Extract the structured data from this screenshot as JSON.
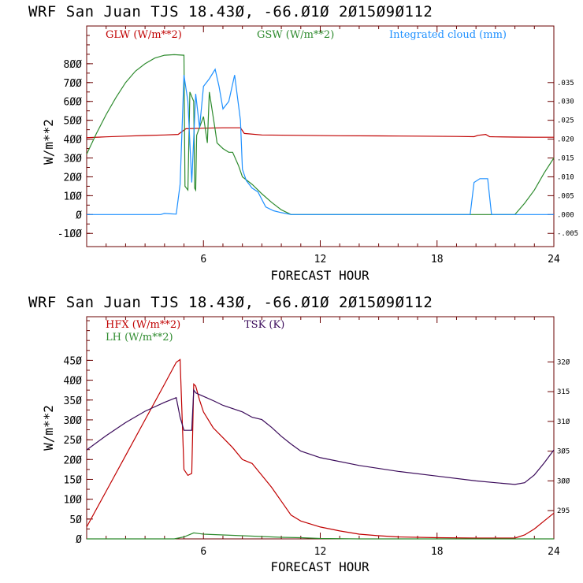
{
  "colors": {
    "red": "#c00000",
    "green": "#2e8b2e",
    "blue": "#1e90ff",
    "purple": "#3a0a5a",
    "frame": "#6a0000"
  },
  "chart_data": [
    {
      "type": "line",
      "title": "WRF  San Juan TJS  18.43Ø, -66.Ø1Ø  2Ø15Ø9Ø112",
      "xlabel": "FORECAST HOUR",
      "ylabel": "W/m**2",
      "xlim": [
        0,
        24
      ],
      "ylim": [
        -170,
        1000
      ],
      "x_ticks": [
        6,
        12,
        18,
        24
      ],
      "y_ticks": [
        -100,
        0,
        100,
        200,
        300,
        400,
        500,
        600,
        700,
        800
      ],
      "y_tick_labels": [
        "-1ØØ",
        "Ø",
        "1ØØ",
        "2ØØ",
        "3ØØ",
        "4ØØ",
        "5ØØ",
        "6ØØ",
        "7ØØ",
        "8ØØ"
      ],
      "x_tick_labels": [
        "6",
        "12",
        "18",
        "24"
      ],
      "y2lim": [
        -0.0085,
        0.05
      ],
      "y2_ticks": [
        -0.005,
        0.0,
        0.005,
        0.01,
        0.015,
        0.02,
        0.025,
        0.03,
        0.035
      ],
      "y2_tick_labels": [
        "-.005",
        ".000",
        ".005",
        ".010",
        ".015",
        ".020",
        ".025",
        ".030",
        ".035"
      ],
      "series": [
        {
          "name": "GLW (W/m**2)",
          "color_key": "red",
          "axis": "left",
          "x": [
            0,
            1,
            2,
            3,
            4,
            4.7,
            5.1,
            6,
            7,
            7.9,
            8.1,
            9,
            11,
            13,
            15,
            17,
            19,
            19.9,
            20.1,
            20.5,
            20.7,
            21,
            22,
            23,
            24
          ],
          "y": [
            408,
            412,
            416,
            419,
            422,
            425,
            455,
            458,
            460,
            460,
            430,
            422,
            420,
            418,
            417,
            416,
            414,
            413,
            420,
            425,
            413,
            412,
            411,
            410,
            410
          ]
        },
        {
          "name": "GSW (W/m**2)",
          "color_key": "green",
          "axis": "left",
          "x": [
            0,
            0.5,
            1,
            1.5,
            2,
            2.5,
            3,
            3.5,
            4,
            4.5,
            5.0,
            5.05,
            5.2,
            5.3,
            5.5,
            5.55,
            5.6,
            5.65,
            6.0,
            6.2,
            6.3,
            6.6,
            6.7,
            7.0,
            7.3,
            7.5,
            7.8,
            8.0,
            8.5,
            9.0,
            9.5,
            10.0,
            10.5,
            22.0,
            22.5,
            23,
            23.5,
            24
          ],
          "y": [
            320,
            430,
            530,
            620,
            700,
            760,
            800,
            830,
            845,
            848,
            845,
            150,
            130,
            650,
            600,
            140,
            130,
            420,
            520,
            380,
            650,
            450,
            380,
            350,
            330,
            330,
            260,
            200,
            160,
            110,
            65,
            25,
            0,
            0,
            60,
            130,
            220,
            300
          ]
        },
        {
          "name": "Integrated cloud (mm)",
          "color_key": "blue",
          "axis": "right",
          "x": [
            0,
            3.8,
            4.0,
            4.3,
            4.6,
            4.8,
            5.0,
            5.2,
            5.4,
            5.6,
            5.8,
            6.0,
            6.3,
            6.6,
            6.8,
            7.0,
            7.3,
            7.6,
            7.9,
            8.0,
            8.2,
            8.5,
            8.8,
            9.2,
            9.6,
            10.0,
            10.5,
            19.7,
            19.9,
            20.2,
            20.6,
            20.8,
            24
          ],
          "y": [
            0,
            0,
            0.0003,
            0.0002,
            0.0001,
            0.008,
            0.037,
            0.03,
            0.0085,
            0.032,
            0.023,
            0.034,
            0.036,
            0.0385,
            0.034,
            0.028,
            0.03,
            0.037,
            0.025,
            0.012,
            0.009,
            0.007,
            0.006,
            0.002,
            0.001,
            0.0005,
            0,
            0,
            0.0085,
            0.0095,
            0.0095,
            0,
            0
          ]
        }
      ]
    },
    {
      "type": "line",
      "title": "WRF  San Juan TJS  18.43Ø, -66.Ø1Ø  2Ø15Ø9Ø112",
      "xlabel": "FORECAST HOUR",
      "ylabel": "W/m**2",
      "xlim": [
        0,
        24
      ],
      "ylim": [
        0,
        560
      ],
      "x_ticks": [
        6,
        12,
        18,
        24
      ],
      "y_ticks": [
        0,
        50,
        100,
        150,
        200,
        250,
        300,
        350,
        400,
        450
      ],
      "y_tick_labels": [
        "Ø",
        "5Ø",
        "1ØØ",
        "15Ø",
        "2ØØ",
        "25Ø",
        "3ØØ",
        "35Ø",
        "4ØØ",
        "45Ø"
      ],
      "x_tick_labels": [
        "6",
        "12",
        "18",
        "24"
      ],
      "y2lim": [
        290.25,
        327.6
      ],
      "y2_ticks": [
        295,
        300,
        305,
        310,
        315,
        320
      ],
      "y2_tick_labels": [
        "295",
        "3ØØ",
        "3Ø5",
        "31Ø",
        "315",
        "32Ø"
      ],
      "series": [
        {
          "name": "HFX (W/m**2)",
          "color_key": "red",
          "axis": "left",
          "x": [
            0,
            1,
            2,
            3,
            4,
            4.6,
            4.8,
            5.0,
            5.2,
            5.4,
            5.5,
            5.6,
            5.8,
            6.0,
            6.5,
            7.0,
            7.5,
            8.0,
            8.5,
            9.0,
            9.5,
            10.0,
            10.5,
            11.0,
            12,
            13,
            14,
            15,
            16,
            18,
            20,
            21,
            22,
            22.5,
            23,
            23.5,
            24
          ],
          "y": [
            30,
            120,
            210,
            300,
            390,
            445,
            452,
            175,
            160,
            165,
            390,
            385,
            350,
            320,
            280,
            255,
            230,
            200,
            190,
            160,
            130,
            95,
            60,
            45,
            30,
            20,
            12,
            8,
            5,
            3,
            2,
            2,
            2,
            10,
            25,
            45,
            65
          ]
        },
        {
          "name": "LH (W/m**2)",
          "color_key": "green",
          "axis": "left",
          "x": [
            0,
            4.5,
            5.0,
            5.5,
            6.0,
            7.0,
            8.0,
            9.0,
            10.0,
            11.0,
            12.0,
            14.0,
            16.0,
            24
          ],
          "y": [
            0,
            0,
            5,
            15,
            12,
            10,
            8,
            6,
            4,
            3,
            1,
            0,
            0,
            0
          ]
        },
        {
          "name": "TSK (K)",
          "color_key": "purple",
          "axis": "right",
          "x": [
            0,
            1,
            2,
            3,
            4,
            4.6,
            4.8,
            5.0,
            5.4,
            5.5,
            5.6,
            5.8,
            6.5,
            7.0,
            8.0,
            8.5,
            9.0,
            9.5,
            10.0,
            10.5,
            11,
            12,
            14,
            16,
            18,
            20,
            21,
            22,
            22.5,
            23,
            23.5,
            24
          ],
          "y": [
            305.2,
            307.6,
            309.8,
            311.7,
            313.2,
            314.0,
            310.7,
            308.5,
            308.5,
            315.3,
            314.8,
            314.5,
            313.5,
            312.7,
            311.6,
            310.7,
            310.3,
            309.0,
            307.5,
            306.2,
            305.0,
            303.9,
            302.6,
            301.6,
            300.8,
            300.0,
            299.7,
            299.4,
            299.7,
            301.0,
            303.0,
            305.2
          ]
        }
      ]
    }
  ]
}
